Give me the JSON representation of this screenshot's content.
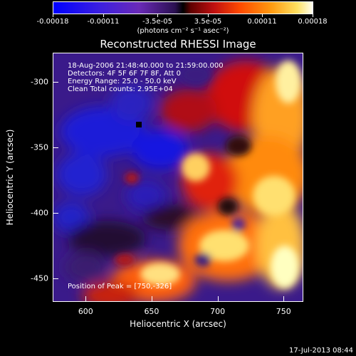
{
  "colorbar": {
    "tick_labels": [
      "-0.00018",
      "-0.00011",
      "-3.5e-05",
      "3.5e-05",
      "0.00011",
      "0.00018"
    ],
    "unit_label": "(photons cm⁻² s⁻¹ asec⁻²)",
    "min": -0.00018,
    "max": 0.00018
  },
  "plot": {
    "title": "Reconstructed RHESSI Image",
    "info_lines": [
      "18-Aug-2006 21:48:40.000 to 21:59:00.000",
      "Detectors: 4F 5F 6F 7F 8F, Att 0",
      "Energy Range: 25.0 - 50.0 keV",
      "Clean     Total counts: 2.95E+04"
    ],
    "peak_label": "Position of Peak = [750,-326]",
    "xlabel": "Heliocentric X (arcsec)",
    "ylabel": "Heliocentric Y (arcsec)",
    "x_ticks": [
      "600",
      "650",
      "700",
      "750"
    ],
    "y_ticks": [
      "-300",
      "-350",
      "-400",
      "-450"
    ],
    "x_range": [
      575,
      765
    ],
    "y_range": [
      -468,
      -278
    ]
  },
  "footer": {
    "timestamp": "17-Jul-2013 08:44"
  }
}
